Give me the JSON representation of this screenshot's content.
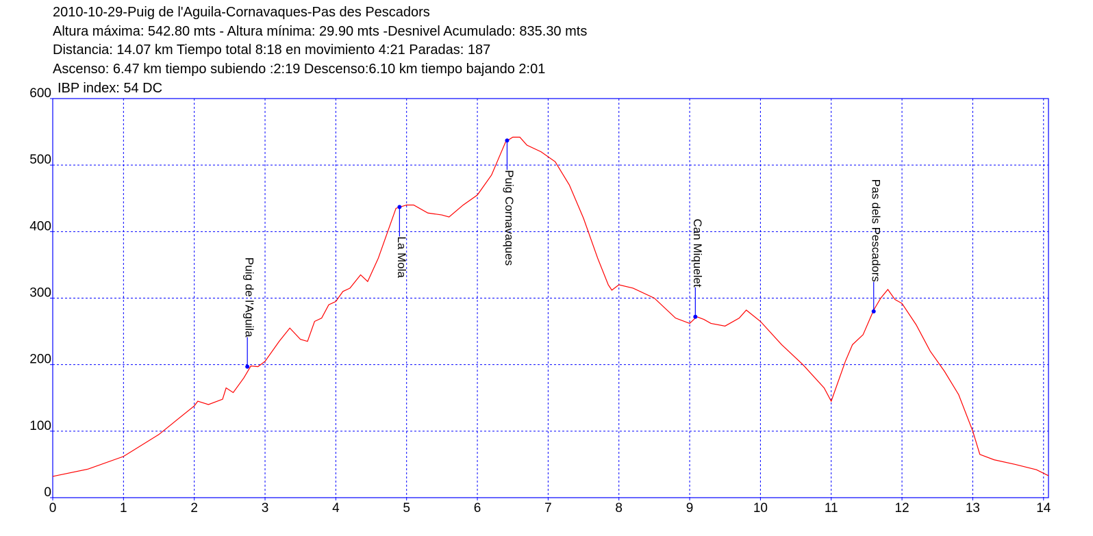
{
  "chart_data": {
    "type": "line",
    "title": "2010-10-29-Puig de l'Aguila-Cornavaques-Pas des Pescadors",
    "subtitle_lines": [
      "Altura máxima: 542.80 mts - Altura mínima: 29.90 mts -Desnivel Acumulado: 835.30 mts",
      "Distancia: 14.07 km  Tiempo total 8:18  en movimiento 4:21 Paradas: 187",
      "Ascenso: 6.47 km  tiempo subiendo :2:19  Descenso:6.10 km tiempo bajando 2:01",
      "IBP index: 54 DC"
    ],
    "x": [
      0,
      0.5,
      1.0,
      1.5,
      2.0,
      2.05,
      2.2,
      2.4,
      2.45,
      2.55,
      2.7,
      2.8,
      2.9,
      3.0,
      3.2,
      3.35,
      3.5,
      3.6,
      3.7,
      3.8,
      3.9,
      4.0,
      4.1,
      4.2,
      4.35,
      4.45,
      4.6,
      4.7,
      4.85,
      5.0,
      5.1,
      5.3,
      5.5,
      5.6,
      5.8,
      6.0,
      6.2,
      6.3,
      6.4,
      6.5,
      6.6,
      6.7,
      6.9,
      7.1,
      7.3,
      7.5,
      7.7,
      7.85,
      7.9,
      8.0,
      8.2,
      8.5,
      8.8,
      9.0,
      9.1,
      9.2,
      9.3,
      9.5,
      9.7,
      9.8,
      10.0,
      10.3,
      10.6,
      10.9,
      11.0,
      11.2,
      11.3,
      11.45,
      11.6,
      11.7,
      11.8,
      11.9,
      12.0,
      12.2,
      12.4,
      12.6,
      12.8,
      13.0,
      13.1,
      13.3,
      13.6,
      13.9,
      14.07
    ],
    "values": [
      32,
      43,
      62,
      95,
      138,
      145,
      140,
      148,
      165,
      158,
      180,
      198,
      197,
      205,
      235,
      255,
      238,
      235,
      265,
      270,
      290,
      295,
      310,
      315,
      335,
      325,
      360,
      390,
      435,
      440,
      440,
      428,
      425,
      422,
      440,
      455,
      485,
      510,
      535,
      542,
      542,
      530,
      520,
      505,
      470,
      420,
      360,
      320,
      312,
      320,
      315,
      300,
      270,
      262,
      272,
      268,
      262,
      258,
      270,
      282,
      265,
      230,
      200,
      165,
      145,
      205,
      230,
      245,
      282,
      300,
      313,
      298,
      292,
      260,
      220,
      190,
      155,
      100,
      65,
      57,
      50,
      42,
      33
    ],
    "color": "#ff0000",
    "annotations": [
      {
        "label": "Puig de l'Aguila",
        "x": 2.75,
        "y": 197
      },
      {
        "label": "La Mola",
        "x": 4.9,
        "y": 437
      },
      {
        "label": "Puig Cornavaques",
        "x": 6.42,
        "y": 537
      },
      {
        "label": "Can Miquelet",
        "x": 9.08,
        "y": 272
      },
      {
        "label": "Pas dels Pescadors",
        "x": 11.6,
        "y": 280
      }
    ],
    "annotation_color": "#0000ff",
    "xlim": [
      0,
      14.07
    ],
    "ylim": [
      0,
      600
    ],
    "xticks": [
      0,
      1,
      2,
      3,
      4,
      5,
      6,
      7,
      8,
      9,
      10,
      11,
      12,
      13,
      14
    ],
    "yticks": [
      0,
      100,
      200,
      300,
      400,
      500,
      600
    ],
    "grid": true,
    "grid_color": "#0000ff"
  }
}
